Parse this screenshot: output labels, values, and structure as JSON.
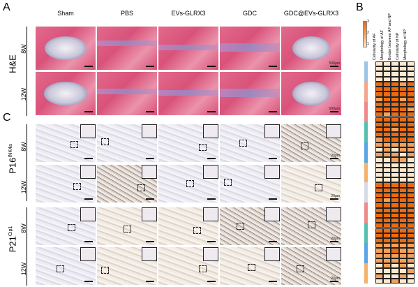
{
  "panels": {
    "a": "A",
    "b": "B",
    "c": "C"
  },
  "columns": [
    "Sham",
    "PBS",
    "EVs-GLRX3",
    "GDC",
    "GDC@EVs-GLRX3"
  ],
  "he": {
    "group": "H&E",
    "rows": [
      "8W",
      "12W"
    ],
    "scale": "500μm"
  },
  "p16": {
    "group_main": "P16",
    "group_sup": "INK4a",
    "rows": [
      "8W",
      "12W"
    ],
    "scale": "20μm"
  },
  "p21": {
    "group_main": "P21",
    "group_sup": "Cip1",
    "rows": [
      "8W",
      "12W"
    ],
    "scale": "20μm"
  },
  "heatmap": {
    "columns": [
      "Cellularity of AF",
      "Morphology of AF",
      "Border between AF and NP",
      "Cellularity of NP",
      "Morphology of NP"
    ],
    "legend_ticks": [
      "3",
      "2",
      "1"
    ],
    "colors": {
      "low": "#fde9cf",
      "mid": "#f6a15a",
      "high": "#ec6a10"
    },
    "group_colors": [
      "#9dc3e6",
      "#f4a58a",
      "#f08a8a",
      "#56c0b0",
      "#5aa5e6",
      "#f4b26a",
      "#d7dbe8",
      "#f08a8a",
      "#56c0b0",
      "#5aa5e6",
      "#f4b26a"
    ],
    "values": [
      [
        1,
        1,
        1,
        1,
        1
      ],
      [
        1,
        1,
        1,
        1,
        1
      ],
      [
        1,
        1,
        1,
        1,
        1
      ],
      [
        1,
        1,
        1,
        1,
        1
      ],
      [
        3,
        3,
        3,
        2,
        3
      ],
      [
        3,
        3,
        3,
        3,
        3
      ],
      [
        3,
        3,
        3,
        3,
        3
      ],
      [
        2,
        3,
        3,
        2,
        3
      ],
      [
        3,
        3,
        3,
        3,
        3
      ],
      [
        3,
        3,
        3,
        3,
        2
      ],
      [
        3,
        2,
        3,
        3,
        3
      ],
      [
        3,
        3,
        3,
        3,
        3
      ],
      [
        3,
        3,
        3,
        3,
        3
      ],
      [
        3,
        3,
        2,
        3,
        3
      ],
      [
        3,
        3,
        3,
        3,
        3
      ],
      [
        2,
        3,
        3,
        3,
        3
      ],
      [
        2,
        2,
        2,
        2,
        2
      ],
      [
        1,
        2,
        1,
        2,
        2
      ],
      [
        2,
        2,
        2,
        1,
        2
      ],
      [
        1,
        1,
        2,
        2,
        1
      ],
      [
        1,
        1,
        1,
        1,
        1
      ],
      [
        1,
        1,
        1,
        1,
        1
      ],
      [
        1,
        1,
        1,
        1,
        1
      ],
      [
        1,
        1,
        1,
        1,
        1
      ],
      [
        3,
        3,
        3,
        3,
        3
      ],
      [
        3,
        3,
        3,
        3,
        3
      ],
      [
        3,
        3,
        3,
        3,
        3
      ],
      [
        3,
        2,
        3,
        3,
        3
      ],
      [
        3,
        3,
        3,
        3,
        3
      ],
      [
        3,
        3,
        3,
        3,
        3
      ],
      [
        3,
        3,
        3,
        3,
        3
      ],
      [
        3,
        3,
        3,
        3,
        3
      ],
      [
        3,
        3,
        3,
        3,
        3
      ],
      [
        3,
        3,
        3,
        3,
        3
      ],
      [
        3,
        3,
        3,
        3,
        3
      ],
      [
        3,
        3,
        3,
        3,
        3
      ],
      [
        2,
        2,
        2,
        2,
        2
      ],
      [
        2,
        2,
        3,
        2,
        2
      ],
      [
        2,
        2,
        2,
        2,
        2
      ],
      [
        2,
        2,
        2,
        2,
        2
      ],
      [
        1,
        2,
        1,
        2,
        1
      ],
      [
        1,
        1,
        1,
        1,
        2
      ],
      [
        2,
        1,
        1,
        2,
        1
      ],
      [
        1,
        1,
        2,
        1,
        1
      ]
    ]
  }
}
